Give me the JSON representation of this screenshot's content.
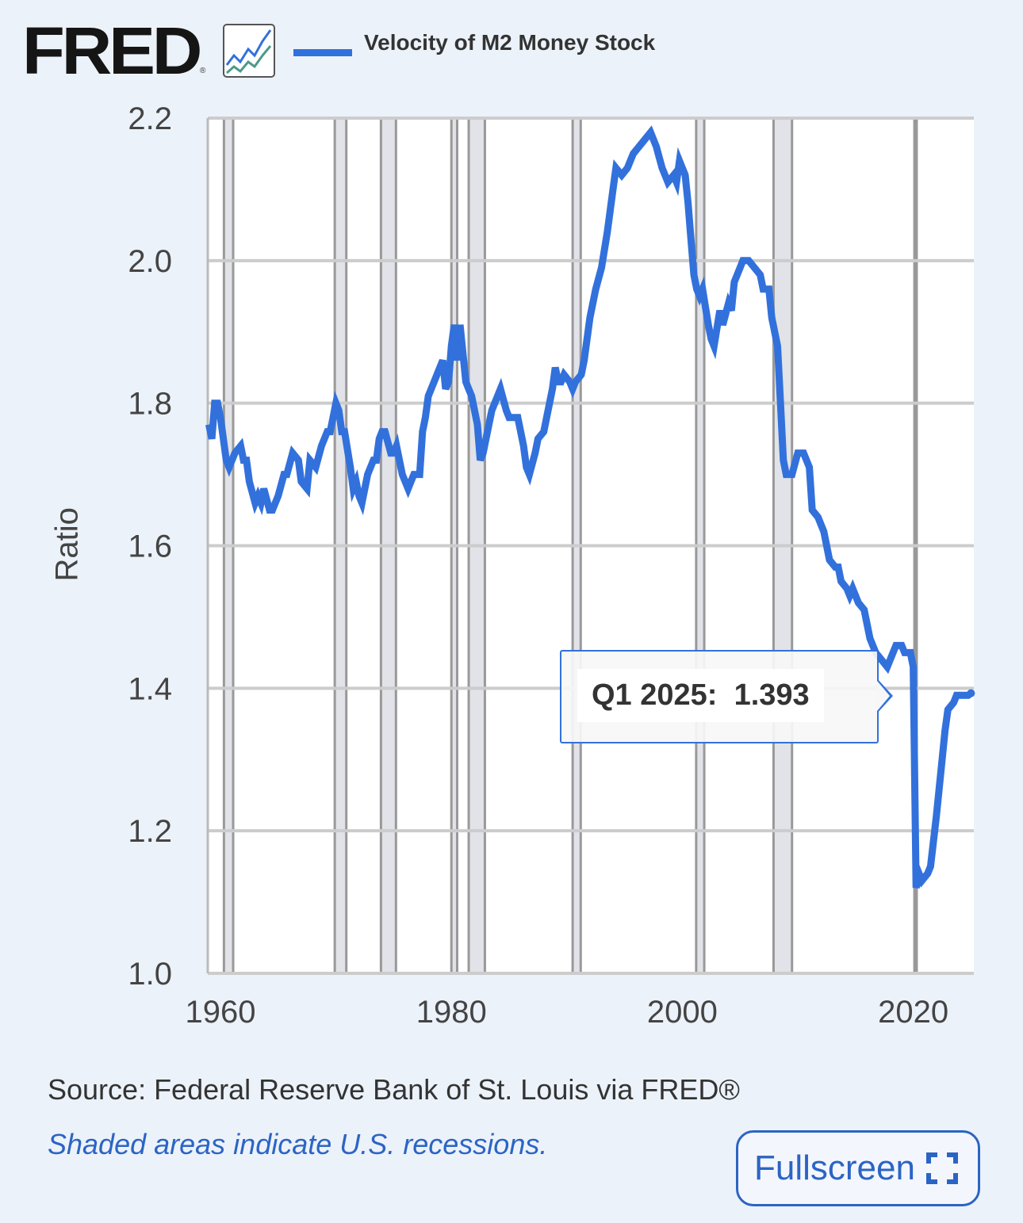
{
  "header": {
    "logo_text": "FRED",
    "legend_label": "Velocity of M2 Money Stock"
  },
  "footer": {
    "source": "Source: Federal Reserve Bank of St. Louis via FRED®",
    "note": "Shaded areas indicate U.S. recessions.",
    "fullscreen_label": "Fullscreen"
  },
  "tooltip": {
    "period": "Q1 2025:",
    "value": "1.393"
  },
  "colors": {
    "line": "#3271dc",
    "recession": "#e1e3e8",
    "grid": "#cccccc",
    "background": "#ecf2fa"
  },
  "chart_data": {
    "type": "line",
    "title": "Velocity of M2 Money Stock",
    "xlabel": "",
    "ylabel": "Ratio",
    "xlim": [
      1959,
      2025.3
    ],
    "ylim": [
      1.0,
      2.2
    ],
    "x_ticks": [
      1960,
      1980,
      2000,
      2020
    ],
    "x_tick_labels": [
      "1960",
      "1980",
      "2000",
      "2020"
    ],
    "y_ticks": [
      1.0,
      1.2,
      1.4,
      1.6,
      1.8,
      2.0,
      2.2
    ],
    "y_tick_labels": [
      "1.0",
      "1.2",
      "1.4",
      "1.6",
      "1.8",
      "2.0",
      "2.2"
    ],
    "grid": "horizontal",
    "legend": "top",
    "recessions": [
      [
        1960.3,
        1961.1
      ],
      [
        1969.9,
        1970.9
      ],
      [
        1973.9,
        1975.2
      ],
      [
        1980.0,
        1980.5
      ],
      [
        1981.5,
        1982.9
      ],
      [
        1990.5,
        1991.2
      ],
      [
        2001.2,
        2001.9
      ],
      [
        2007.9,
        2009.5
      ],
      [
        2020.1,
        2020.3
      ]
    ],
    "series": [
      {
        "name": "Velocity of M2 Money Stock",
        "x": [
          1959.0,
          1959.25,
          1959.5,
          1959.75,
          1960.0,
          1960.5,
          1960.75,
          1961.25,
          1961.75,
          1962.0,
          1962.25,
          1962.5,
          1963.0,
          1963.25,
          1963.5,
          1963.75,
          1964.25,
          1964.5,
          1965.0,
          1965.5,
          1965.75,
          1966.25,
          1966.75,
          1967.0,
          1967.5,
          1967.75,
          1968.25,
          1968.75,
          1969.25,
          1969.5,
          1969.75,
          1970.0,
          1970.25,
          1970.5,
          1970.75,
          1971.25,
          1971.5,
          1971.75,
          1972.0,
          1972.25,
          1972.75,
          1973.25,
          1973.5,
          1973.75,
          1974.0,
          1974.25,
          1974.75,
          1975.0,
          1975.25,
          1975.75,
          1976.25,
          1976.5,
          1976.75,
          1977.25,
          1977.5,
          1977.75,
          1978.0,
          1978.5,
          1978.75,
          1979.25,
          1979.5,
          1979.75,
          1980.0,
          1980.25,
          1980.5,
          1980.75,
          1981.25,
          1981.5,
          1981.75,
          1982.25,
          1982.5,
          1982.75,
          1983.25,
          1983.5,
          1983.75,
          1984.25,
          1984.75,
          1985.0,
          1985.5,
          1985.75,
          1986.25,
          1986.5,
          1986.75,
          1987.25,
          1987.5,
          1988.0,
          1988.25,
          1988.75,
          1989.0,
          1989.25,
          1989.5,
          1989.75,
          1990.25,
          1990.5,
          1990.75,
          1991.25,
          1991.5,
          1992.0,
          1992.5,
          1993.0,
          1993.5,
          1994.0,
          1994.25,
          1994.75,
          1995.25,
          1995.75,
          1996.25,
          1996.75,
          1997.25,
          1997.75,
          1998.25,
          1998.5,
          1998.75,
          1999.25,
          1999.5,
          1999.75,
          2000.25,
          2000.5,
          2000.75,
          2001.0,
          2001.25,
          2001.5,
          2001.75,
          2002.25,
          2002.5,
          2002.75,
          2003.25,
          2003.5,
          2004.0,
          2004.25,
          2004.5,
          2005.0,
          2005.25,
          2005.75,
          2006.25,
          2006.75,
          2007.0,
          2007.5,
          2007.75,
          2008.25,
          2008.5,
          2008.75,
          2009.0,
          2009.5,
          2010.0,
          2010.5,
          2011.0,
          2011.25,
          2011.75,
          2012.25,
          2012.75,
          2013.25,
          2013.5,
          2013.75,
          2014.25,
          2014.5,
          2014.75,
          2015.25,
          2015.75,
          2016.25,
          2016.75,
          2017.25,
          2017.75,
          2018.25,
          2018.5,
          2019.0,
          2019.25,
          2019.75,
          2020.0,
          2020.25,
          2020.5,
          2020.75,
          2021.25,
          2021.5,
          2022.0,
          2022.5,
          2022.75,
          2023.0,
          2023.5,
          2023.75,
          2024.25,
          2024.5,
          2024.75,
          2025.0
        ],
        "values": [
          1.77,
          1.75,
          1.8,
          1.8,
          1.78,
          1.72,
          1.71,
          1.73,
          1.74,
          1.72,
          1.72,
          1.69,
          1.66,
          1.67,
          1.66,
          1.68,
          1.65,
          1.65,
          1.67,
          1.7,
          1.7,
          1.73,
          1.72,
          1.69,
          1.68,
          1.72,
          1.71,
          1.74,
          1.76,
          1.76,
          1.78,
          1.8,
          1.79,
          1.76,
          1.76,
          1.71,
          1.68,
          1.69,
          1.67,
          1.66,
          1.7,
          1.72,
          1.72,
          1.75,
          1.76,
          1.76,
          1.73,
          1.73,
          1.74,
          1.7,
          1.68,
          1.69,
          1.7,
          1.7,
          1.76,
          1.78,
          1.81,
          1.83,
          1.84,
          1.86,
          1.82,
          1.83,
          1.88,
          1.91,
          1.86,
          1.91,
          1.83,
          1.82,
          1.81,
          1.77,
          1.72,
          1.73,
          1.77,
          1.79,
          1.8,
          1.82,
          1.79,
          1.78,
          1.78,
          1.78,
          1.74,
          1.71,
          1.7,
          1.73,
          1.75,
          1.76,
          1.78,
          1.82,
          1.85,
          1.83,
          1.83,
          1.84,
          1.83,
          1.82,
          1.83,
          1.84,
          1.86,
          1.92,
          1.96,
          1.99,
          2.04,
          2.1,
          2.13,
          2.12,
          2.13,
          2.15,
          2.16,
          2.17,
          2.18,
          2.16,
          2.13,
          2.12,
          2.11,
          2.12,
          2.11,
          2.14,
          2.12,
          2.08,
          2.03,
          1.98,
          1.96,
          1.95,
          1.96,
          1.91,
          1.89,
          1.88,
          1.93,
          1.91,
          1.94,
          1.93,
          1.97,
          1.99,
          2.0,
          2.0,
          1.99,
          1.98,
          1.96,
          1.96,
          1.92,
          1.88,
          1.8,
          1.72,
          1.7,
          1.7,
          1.73,
          1.73,
          1.71,
          1.65,
          1.64,
          1.62,
          1.58,
          1.57,
          1.57,
          1.55,
          1.54,
          1.53,
          1.54,
          1.52,
          1.51,
          1.47,
          1.45,
          1.44,
          1.43,
          1.45,
          1.46,
          1.46,
          1.45,
          1.45,
          1.43,
          1.12,
          1.14,
          1.13,
          1.14,
          1.15,
          1.22,
          1.3,
          1.34,
          1.37,
          1.38,
          1.39,
          1.39,
          1.39,
          1.39,
          1.393
        ]
      }
    ]
  }
}
